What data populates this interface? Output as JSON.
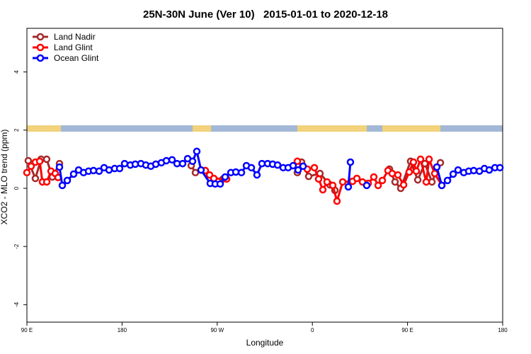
{
  "chart_data": {
    "type": "line",
    "title": "25N-30N June (Ver 10)   2015-01-01 to 2020-12-18",
    "x_label": "Longitude",
    "y_label": "XCO2 - MLO trend (ppm)",
    "xlim": [
      90,
      540
    ],
    "ylim": [
      -4.6,
      5.5
    ],
    "xticks": [
      {
        "value": 90,
        "label": "90 E"
      },
      180,
      {
        "value": 270,
        "label": "90 W"
      },
      {
        "value": 360,
        "label": "0"
      },
      {
        "value": 450,
        "label": "90 E"
      },
      {
        "value": 540,
        "label": "180"
      }
    ],
    "yticks": [
      -4,
      -2,
      0,
      2,
      4
    ],
    "legend": "top-left",
    "series": [
      {
        "name": "Land Nadir",
        "color": "#a52a2a",
        "x": [
          91.3,
          98.0,
          103.4,
          108.7,
          114.1,
          120.8,
          null,
          245.4,
          249.4,
          null,
          275.5,
          null,
          345.8,
          349.8,
          356.5,
          367.2,
          376.6,
          381.3,
          null,
          432.9,
          438.2,
          443.6,
          452.9,
          459.7,
          466.4,
          473.1,
          481.1
        ],
        "values": [
          0.95,
          0.34,
          1.0,
          1.0,
          0.39,
          0.85,
          null,
          0.78,
          0.54,
          null,
          0.32,
          null,
          0.54,
          0.9,
          0.41,
          0.51,
          0.12,
          -0.07,
          null,
          0.66,
          0.22,
          0.0,
          0.93,
          0.29,
          0.85,
          0.22,
          0.88
        ]
      },
      {
        "name": "Land Glint",
        "color": "#ff0000",
        "x": [
          90.0,
          94.0,
          98.0,
          102.1,
          104.7,
          108.8,
          112.8,
          116.8,
          119.5,
          null,
          254.7,
          258.8,
          262.8,
          266.8,
          278.9,
          null,
          345.8,
          351.2,
          355.2,
          361.9,
          365.9,
          369.9,
          373.9,
          379.3,
          383.3,
          388.7,
          398.0,
          402.1,
          407.4,
          412.8,
          418.1,
          422.2,
          426.2,
          431.5,
          435.5,
          440.9,
          446.3,
          451.6,
          455.6,
          458.3,
          462.3,
          467.7,
          470.4,
          475.7,
          482.4
        ],
        "values": [
          0.54,
          0.76,
          0.9,
          0.93,
          0.22,
          0.22,
          0.59,
          0.51,
          0.37,
          null,
          0.63,
          0.61,
          0.46,
          0.34,
          0.32,
          null,
          0.93,
          0.76,
          0.66,
          0.71,
          0.32,
          -0.05,
          0.22,
          0.1,
          -0.44,
          0.22,
          0.24,
          0.34,
          0.22,
          0.17,
          0.39,
          0.1,
          0.27,
          0.61,
          0.51,
          0.46,
          0.12,
          0.56,
          0.9,
          0.59,
          1.0,
          0.22,
          1.0,
          0.51,
          0.1
        ]
      },
      {
        "name": "Ocean Glint",
        "color": "#0000ff",
        "x": [
          120.8,
          123.5,
          128.2,
          134.2,
          138.9,
          143.6,
          148.3,
          153.0,
          158.3,
          163.0,
          167.7,
          173.0,
          177.7,
          182.4,
          187.8,
          192.5,
          197.8,
          202.5,
          207.2,
          211.9,
          217.2,
          221.9,
          227.3,
          232.0,
          237.3,
          242.0,
          246.7,
          250.7,
          254.7,
          263.4,
          268.1,
          272.8,
          277.5,
          282.9,
          287.6,
          292.9,
          297.6,
          302.3,
          307.6,
          312.3,
          317.7,
          322.4,
          327.1,
          332.4,
          337.1,
          341.8,
          346.5,
          351.2,
          null,
          394.0,
          396.0,
          null,
          411.4,
          null,
          477.7,
          482.4,
          487.8,
          493.2,
          497.8,
          503.2,
          507.9,
          512.6,
          518.0,
          522.7,
          527.3,
          532.7,
          537.4
        ],
        "values": [
          0.73,
          0.1,
          0.27,
          0.49,
          0.63,
          0.54,
          0.59,
          0.61,
          0.59,
          0.71,
          0.63,
          0.68,
          0.68,
          0.85,
          0.8,
          0.83,
          0.85,
          0.8,
          0.76,
          0.83,
          0.88,
          0.95,
          0.98,
          0.85,
          0.85,
          1.02,
          0.93,
          1.27,
          0.63,
          0.17,
          0.15,
          0.15,
          0.39,
          0.54,
          0.56,
          0.54,
          0.78,
          0.71,
          0.46,
          0.85,
          0.85,
          0.83,
          0.8,
          0.71,
          0.71,
          0.78,
          0.63,
          0.76,
          null,
          0.05,
          0.9,
          null,
          0.1,
          null,
          0.73,
          0.1,
          0.27,
          0.49,
          0.63,
          0.54,
          0.59,
          0.61,
          0.59,
          0.68,
          0.63,
          0.71,
          0.71
        ]
      }
    ]
  }
}
